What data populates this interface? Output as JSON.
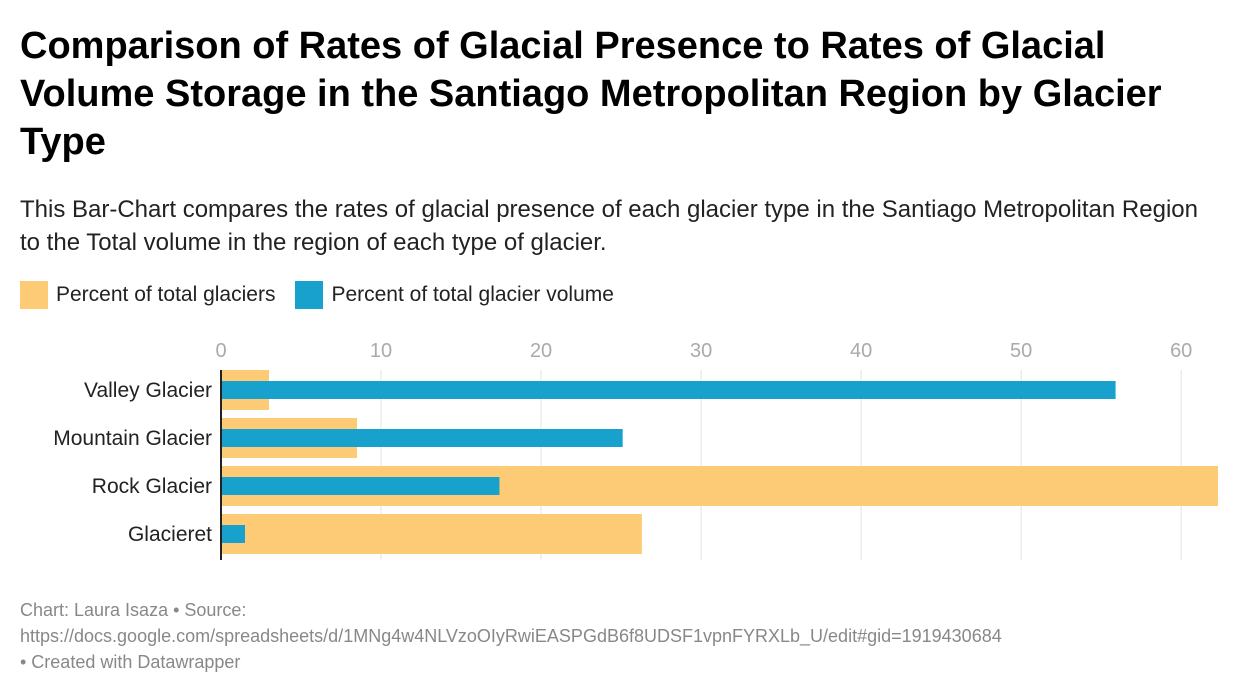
{
  "title": "Comparison of Rates of Glacial Presence to Rates of Glacial Volume Storage in the Santiago Metropolitan Region by Glacier Type",
  "subtitle": "This Bar-Chart compares the rates of glacial presence of each glacier type in the Santiago Metropolitan Region to the Total volume in the region of each type of glacier.",
  "legend": [
    {
      "label": "Percent of total glaciers",
      "color": "#fdca75"
    },
    {
      "label": "Percent of total glacier volume",
      "color": "#18a1cd"
    }
  ],
  "footer": {
    "line1": "Chart: Laura Isaza • Source:",
    "line2": "https://docs.google.com/spreadsheets/d/1MNg4w4NLVzoOIyRwiEASPGdB6f8UDSF1vpnFYRXLb_U/edit#gid=1919430684",
    "line3": "• Created with Datawrapper"
  },
  "chart_data": {
    "type": "bar",
    "orientation": "horizontal",
    "categories": [
      "Valley Glacier",
      "Mountain Glacier",
      "Rock Glacier",
      "Glacieret"
    ],
    "series": [
      {
        "name": "Percent of total glaciers",
        "color": "#fdca75",
        "values": [
          3.0,
          8.5,
          62.3,
          26.3
        ]
      },
      {
        "name": "Percent of total glacier volume",
        "color": "#18a1cd",
        "values": [
          55.9,
          25.1,
          17.4,
          1.5
        ]
      }
    ],
    "xlim": [
      0,
      62.3
    ],
    "xticks": [
      0,
      10,
      20,
      30,
      40,
      50,
      60
    ],
    "grid": true,
    "legend_position": "top-left"
  }
}
